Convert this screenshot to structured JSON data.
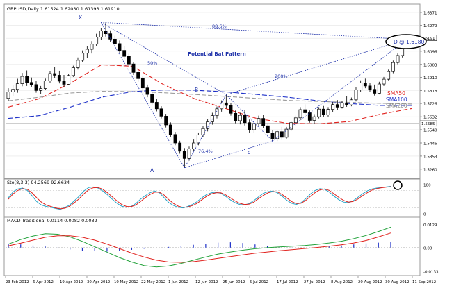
{
  "chart_data": [
    {
      "type": "candlestick",
      "panel": "main",
      "title": "GBPUSD,Daily  1.61524 1.62030 1.61393 1.61910",
      "symbol": "GBPUSD",
      "timeframe": "Daily",
      "ohlc_readout": [
        "1.61524",
        "1.62030",
        "1.61393",
        "1.61910"
      ],
      "y_ticks": [
        "1.6371",
        "1.6279",
        "1.6188",
        "1.6096",
        "1.6003",
        "1.5910",
        "1.5818",
        "1.5726",
        "1.5632",
        "1.5540",
        "1.5446",
        "1.5353",
        "1.5260"
      ],
      "ylim": [
        1.5205,
        1.642
      ],
      "current_price": "1.6191",
      "crosshair_price": "1.5585",
      "x_ticks": [
        "23 Feb 2012",
        "6 Apr 2012",
        "19 Apr 2012",
        "30 Apr 2012",
        "10 May 2012",
        "22 May 2012",
        "1 Jun 2012",
        "12 Jun 2012",
        "25 Jun 2012",
        "5 Jul 2012",
        "17 Jul 2012",
        "27 Jul 2012",
        "8 Aug 2012",
        "20 Aug 2012",
        "30 Aug 2012",
        "11 Sep 2012"
      ],
      "candles": [
        [
          1.5762,
          1.5834,
          1.5744,
          1.5808
        ],
        [
          1.5808,
          1.5859,
          1.5779,
          1.5826
        ],
        [
          1.5826,
          1.5901,
          1.5802,
          1.5866
        ],
        [
          1.5866,
          1.5942,
          1.5848,
          1.5918
        ],
        [
          1.5918,
          1.596,
          1.585,
          1.5875
        ],
        [
          1.5875,
          1.591,
          1.5845,
          1.586
        ],
        [
          1.586,
          1.5888,
          1.5802,
          1.5818
        ],
        [
          1.5818,
          1.585,
          1.5794,
          1.5832
        ],
        [
          1.5832,
          1.5902,
          1.5824,
          1.5886
        ],
        [
          1.5886,
          1.5955,
          1.587,
          1.5938
        ],
        [
          1.5938,
          1.5983,
          1.5905,
          1.5926
        ],
        [
          1.5926,
          1.5958,
          1.5868,
          1.5884
        ],
        [
          1.5884,
          1.5928,
          1.5845,
          1.5862
        ],
        [
          1.5862,
          1.5936,
          1.5856,
          1.5924
        ],
        [
          1.5924,
          1.5994,
          1.5914,
          1.598
        ],
        [
          1.598,
          1.6052,
          1.5966,
          1.6032
        ],
        [
          1.6032,
          1.6102,
          1.6018,
          1.6082
        ],
        [
          1.6082,
          1.6134,
          1.605,
          1.611
        ],
        [
          1.611,
          1.6168,
          1.608,
          1.6146
        ],
        [
          1.6146,
          1.622,
          1.613,
          1.6196
        ],
        [
          1.6196,
          1.6262,
          1.6178,
          1.624
        ],
        [
          1.624,
          1.6301,
          1.62,
          1.622
        ],
        [
          1.622,
          1.6244,
          1.616,
          1.6182
        ],
        [
          1.6182,
          1.6206,
          1.6128,
          1.615
        ],
        [
          1.615,
          1.6172,
          1.6082,
          1.6102
        ],
        [
          1.6102,
          1.613,
          1.604,
          1.606
        ],
        [
          1.606,
          1.6078,
          1.599,
          1.6006
        ],
        [
          1.6006,
          1.602,
          1.5928,
          1.5946
        ],
        [
          1.5946,
          1.5968,
          1.588,
          1.5902
        ],
        [
          1.5902,
          1.5922,
          1.5816,
          1.5836
        ],
        [
          1.5836,
          1.586,
          1.577,
          1.579
        ],
        [
          1.579,
          1.5812,
          1.5718,
          1.5734
        ],
        [
          1.5734,
          1.5758,
          1.567,
          1.5688
        ],
        [
          1.5688,
          1.5706,
          1.562,
          1.5636
        ],
        [
          1.5636,
          1.5652,
          1.5556,
          1.5574
        ],
        [
          1.5574,
          1.5592,
          1.549,
          1.5506
        ],
        [
          1.5506,
          1.5524,
          1.543,
          1.5446
        ],
        [
          1.5446,
          1.5462,
          1.537,
          1.5388
        ],
        [
          1.5388,
          1.541,
          1.527,
          1.5336
        ],
        [
          1.5336,
          1.542,
          1.532,
          1.5404
        ],
        [
          1.5404,
          1.547,
          1.5388,
          1.5446
        ],
        [
          1.5446,
          1.552,
          1.543,
          1.5502
        ],
        [
          1.5502,
          1.5568,
          1.5486,
          1.5548
        ],
        [
          1.5548,
          1.5614,
          1.5528,
          1.5596
        ],
        [
          1.5596,
          1.566,
          1.5576,
          1.564
        ],
        [
          1.564,
          1.5704,
          1.562,
          1.5688
        ],
        [
          1.5688,
          1.5748,
          1.5668,
          1.573
        ],
        [
          1.573,
          1.5788,
          1.569,
          1.5712
        ],
        [
          1.5712,
          1.573,
          1.564,
          1.5656
        ],
        [
          1.5656,
          1.5676,
          1.5586,
          1.5604
        ],
        [
          1.5604,
          1.566,
          1.5578,
          1.5642
        ],
        [
          1.5642,
          1.5678,
          1.557,
          1.559
        ],
        [
          1.559,
          1.5612,
          1.552,
          1.554
        ],
        [
          1.554,
          1.56,
          1.5518,
          1.5584
        ],
        [
          1.5584,
          1.564,
          1.5566,
          1.562
        ],
        [
          1.562,
          1.5644,
          1.555,
          1.5568
        ],
        [
          1.5568,
          1.5586,
          1.55,
          1.5518
        ],
        [
          1.5518,
          1.5538,
          1.546,
          1.5476
        ],
        [
          1.5476,
          1.554,
          1.546,
          1.5526
        ],
        [
          1.5526,
          1.556,
          1.5468,
          1.5486
        ],
        [
          1.5486,
          1.556,
          1.5476,
          1.5544
        ],
        [
          1.5544,
          1.5604,
          1.553,
          1.559
        ],
        [
          1.559,
          1.564,
          1.557,
          1.5624
        ],
        [
          1.5624,
          1.57,
          1.5608,
          1.5682
        ],
        [
          1.5682,
          1.572,
          1.564,
          1.566
        ],
        [
          1.566,
          1.5676,
          1.559,
          1.5606
        ],
        [
          1.5606,
          1.565,
          1.558,
          1.5632
        ],
        [
          1.5632,
          1.57,
          1.562,
          1.5686
        ],
        [
          1.5686,
          1.5708,
          1.5628,
          1.5646
        ],
        [
          1.5646,
          1.57,
          1.563,
          1.5684
        ],
        [
          1.5684,
          1.5736,
          1.5664,
          1.5718
        ],
        [
          1.5718,
          1.575,
          1.5682,
          1.57
        ],
        [
          1.57,
          1.5746,
          1.569,
          1.573
        ],
        [
          1.573,
          1.5776,
          1.5702,
          1.5716
        ],
        [
          1.5716,
          1.5768,
          1.5706,
          1.5752
        ],
        [
          1.5752,
          1.584,
          1.574,
          1.5822
        ],
        [
          1.5822,
          1.589,
          1.5808,
          1.5872
        ],
        [
          1.5872,
          1.5902,
          1.5834,
          1.585
        ],
        [
          1.585,
          1.5874,
          1.5806,
          1.5826
        ],
        [
          1.5826,
          1.586,
          1.5782,
          1.5798
        ],
        [
          1.5798,
          1.588,
          1.579,
          1.5864
        ],
        [
          1.5864,
          1.5914,
          1.585,
          1.5898
        ],
        [
          1.5898,
          1.5966,
          1.589,
          1.5952
        ],
        [
          1.5952,
          1.603,
          1.594,
          1.6016
        ],
        [
          1.6016,
          1.608,
          1.6004,
          1.6066
        ],
        [
          1.6066,
          1.613,
          1.6052,
          1.612
        ],
        [
          1.612,
          1.618,
          1.611,
          1.6152
        ],
        [
          1.6152,
          1.6203,
          1.6139,
          1.6191
        ]
      ],
      "moving_averages": [
        {
          "name": "SMA50",
          "color": "#e0201c",
          "values": [
            1.57,
            1.576,
            1.587,
            1.6,
            1.599,
            1.586,
            1.576,
            1.569,
            1.562,
            1.5585,
            1.5582,
            1.5598,
            1.565,
            1.569
          ]
        },
        {
          "name": "SMA100",
          "color": "#1c2fc8",
          "values": [
            1.562,
            1.564,
            1.57,
            1.577,
            1.581,
            1.5822,
            1.582,
            1.5808,
            1.579,
            1.577,
            1.5745,
            1.5725,
            1.5712,
            1.5712
          ]
        },
        {
          "name": "SMA200",
          "color": "#9a9a9a",
          "values": [
            1.5745,
            1.577,
            1.58,
            1.5812,
            1.581,
            1.5802,
            1.579,
            1.5776,
            1.5762,
            1.5748,
            1.574,
            1.5734,
            1.5727,
            1.5722
          ]
        }
      ],
      "ma_labels": [
        {
          "text": "SMA50",
          "color": "#e0201c"
        },
        {
          "text": "SMA100",
          "color": "#1c2fc8"
        },
        {
          "text": "SMA200",
          "color": "#888888"
        }
      ],
      "pattern": {
        "title": "Potential Bat Pattern",
        "color": "#1c2fa8",
        "points": [
          {
            "label": "X",
            "price": 1.6301
          },
          {
            "label": "A",
            "price": 1.527
          },
          {
            "label": "B",
            "price": 1.5788
          },
          {
            "label": "c",
            "price": 1.546
          },
          {
            "label": "D",
            "price": 1.618
          }
        ],
        "ratios": [
          "50%",
          "76.4%",
          "88.6%",
          "200%"
        ],
        "target_label": "D @ 1.6180"
      }
    },
    {
      "type": "line",
      "panel": "stochastic",
      "title": "Sto(8,3,3) 94.2569 92.6634",
      "y_ticks": [
        "100",
        "0"
      ],
      "ylim": [
        0,
        100
      ],
      "series": [
        {
          "name": "94.2569",
          "color": "#27a4c8",
          "values": [
            55,
            75,
            85,
            88,
            80,
            62,
            42,
            30,
            25,
            22,
            18,
            15,
            22,
            30,
            45,
            60,
            78,
            90,
            92,
            88,
            78,
            65,
            50,
            36,
            26,
            22,
            25,
            35,
            50,
            62,
            72,
            78,
            72,
            55,
            38,
            28,
            22,
            20,
            25,
            32,
            42,
            55,
            66,
            72,
            74,
            70,
            60,
            48,
            38,
            32,
            30,
            35,
            45,
            58,
            70,
            76,
            78,
            72,
            60,
            46,
            36,
            32,
            38,
            52,
            68,
            80,
            86,
            84,
            74,
            60,
            48,
            40,
            38,
            44,
            56,
            68,
            78,
            85,
            88,
            90,
            92,
            94
          ]
        },
        {
          "name": "92.6634",
          "color": "#e0201c",
          "values": [
            50,
            68,
            80,
            86,
            84,
            72,
            55,
            40,
            30,
            25,
            20,
            17,
            19,
            26,
            38,
            52,
            68,
            82,
            89,
            90,
            84,
            72,
            58,
            44,
            32,
            25,
            24,
            30,
            42,
            55,
            66,
            74,
            74,
            64,
            48,
            35,
            26,
            22,
            23,
            28,
            36,
            48,
            60,
            68,
            72,
            72,
            65,
            55,
            44,
            36,
            32,
            33,
            40,
            52,
            63,
            72,
            76,
            75,
            66,
            54,
            42,
            35,
            36,
            46,
            60,
            73,
            82,
            85,
            80,
            68,
            56,
            46,
            40,
            42,
            50,
            62,
            72,
            81,
            86,
            89,
            91,
            92.66
          ]
        }
      ]
    },
    {
      "type": "line",
      "panel": "macd",
      "title": "MACD Traditional 0.0114 0.0082 0.0032",
      "y_ticks": [
        "0.0129",
        "0.00",
        "-0.0133"
      ],
      "ylim": [
        -0.014,
        0.0135
      ],
      "series": [
        {
          "name": "0.0114",
          "color": "#22a23a",
          "values": [
            0.002,
            0.0045,
            0.0065,
            0.0078,
            0.0075,
            0.006,
            0.0035,
            0.0005,
            -0.0025,
            -0.0055,
            -0.008,
            -0.01,
            -0.0108,
            -0.0102,
            -0.0088,
            -0.007,
            -0.0052,
            -0.0036,
            -0.0024,
            -0.0014,
            -0.0006,
            0.0,
            0.0004,
            0.0008,
            0.0012,
            0.0018,
            0.0026,
            0.0036,
            0.005,
            0.0068,
            0.009,
            0.0114
          ]
        },
        {
          "name": "0.0082",
          "color": "#e0201c",
          "values": [
            0.001,
            0.0025,
            0.0042,
            0.0058,
            0.0066,
            0.0066,
            0.0058,
            0.0042,
            0.002,
            -0.0005,
            -0.003,
            -0.0052,
            -0.007,
            -0.008,
            -0.0082,
            -0.0078,
            -0.007,
            -0.006,
            -0.005,
            -0.004,
            -0.0031,
            -0.0024,
            -0.0017,
            -0.0011,
            -0.0005,
            0.0001,
            0.0008,
            0.0016,
            0.0026,
            0.004,
            0.006,
            0.0082
          ]
        },
        {
          "name": "0.0032",
          "color": "#1c2fc8",
          "values": [
            0.0022,
            0.0018,
            0.0012,
            0.0006,
            -0.0002,
            -0.001,
            -0.0016,
            -0.002,
            -0.0022,
            -0.0018,
            -0.0012,
            -0.0006,
            -0.0001,
            0.0004,
            0.001,
            0.0016,
            0.0022,
            0.0028,
            0.003,
            0.0026,
            0.0018,
            0.001,
            0.0004,
            0.0001,
            -0.0002,
            0.0,
            0.0006,
            0.0012,
            0.0018,
            0.0024,
            0.0028,
            0.0032
          ]
        }
      ]
    }
  ]
}
